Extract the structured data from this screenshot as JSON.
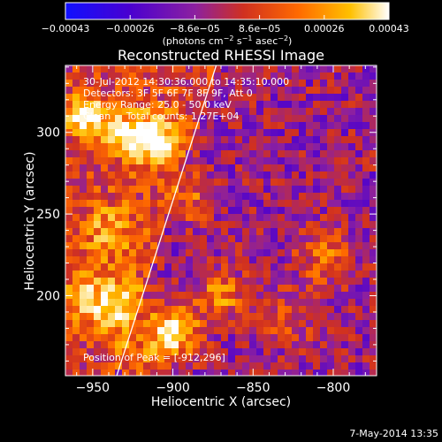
{
  "chart_data": {
    "type": "heatmap",
    "title": "Reconstructed RHESSI Image",
    "xlabel": "Heliocentric X (arcsec)",
    "ylabel": "Heliocentric Y (arcsec)",
    "xlim": [
      -967,
      -773
    ],
    "ylim": [
      151,
      341
    ],
    "x_ticks": [
      -950,
      -900,
      -850,
      -800
    ],
    "y_ticks": [
      200,
      250,
      300
    ],
    "x_tick_labels": [
      "−950",
      "−900",
      "−850",
      "−800"
    ],
    "y_tick_labels": [
      "200",
      "250",
      "300"
    ],
    "colorbar": {
      "range": [
        -0.00043,
        0.00043
      ],
      "tick_labels": [
        "−0.00043",
        "−0.00026",
        "−8.6e−05",
        "8.6e−05",
        "0.00026",
        "0.00043"
      ],
      "unit_base": "(photons cm",
      "unit_exp1": "−2",
      "unit_mid": " s",
      "unit_exp2": "−1",
      "unit_mid2": " asec",
      "unit_exp3": "−2",
      "unit_end": ")",
      "colors": [
        "#1010ff",
        "#4a00d0",
        "#8c20a0",
        "#d03020",
        "#ff6a00",
        "#ffc000",
        "#ffffff"
      ]
    },
    "annotations": {
      "time": "30-Jul-2012 14:30:36.000 to 14:35:10.000",
      "detectors": "Detectors: 3F 5F 6F 7F 8F 9F, Att 0",
      "energy": "Energy Range: 25.0 - 50.0 keV",
      "clean": "Clean     Total counts: 1.27E+04",
      "peak": "Position of Peak = [-912,296]"
    },
    "peak_position": [
      -912,
      296
    ],
    "limb_line": [
      [
        -935,
        151
      ],
      [
        -873,
        341
      ]
    ],
    "sources": [
      {
        "x": -900,
        "y": 178,
        "amp": 1.0,
        "r": 11
      },
      {
        "x": -912,
        "y": 296,
        "amp": 0.95,
        "r": 10
      },
      {
        "x": -955,
        "y": 310,
        "amp": 0.85,
        "r": 8
      },
      {
        "x": -932,
        "y": 300,
        "amp": 0.6,
        "r": 10
      },
      {
        "x": -935,
        "y": 195,
        "amp": 0.7,
        "r": 12
      },
      {
        "x": -870,
        "y": 200,
        "amp": 0.55,
        "r": 11
      },
      {
        "x": -940,
        "y": 240,
        "amp": 0.45,
        "r": 12
      },
      {
        "x": -890,
        "y": 260,
        "amp": 0.45,
        "r": 10
      },
      {
        "x": -805,
        "y": 225,
        "amp": 0.45,
        "r": 12
      },
      {
        "x": -830,
        "y": 185,
        "amp": 0.3,
        "r": 12
      },
      {
        "x": -958,
        "y": 200,
        "amp": 0.45,
        "r": 9
      },
      {
        "x": -920,
        "y": 160,
        "amp": 0.45,
        "r": 10
      }
    ],
    "date_stamp": "7-May-2014 13:35"
  }
}
